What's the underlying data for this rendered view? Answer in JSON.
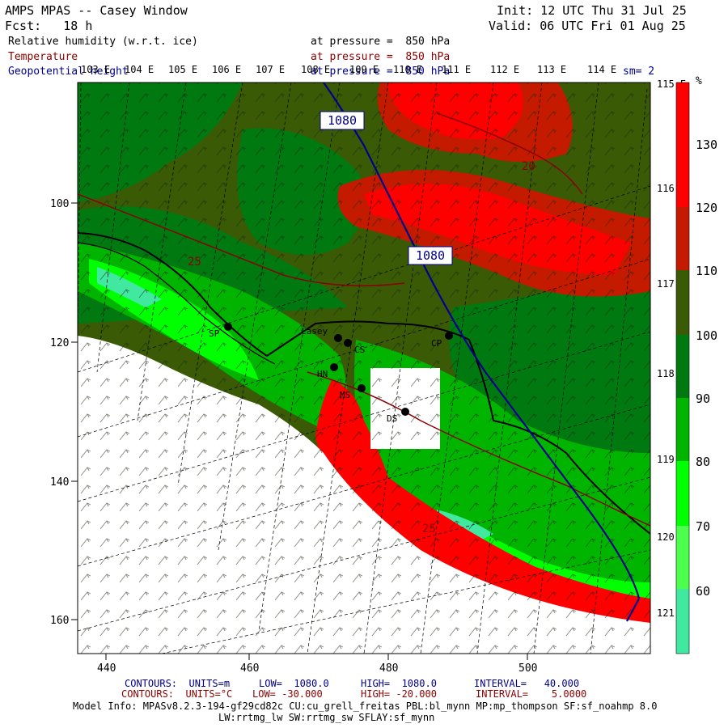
{
  "header": {
    "title": "AMPS MPAS -- Casey Window",
    "fcst": "Fcst:   18 h",
    "init": "Init: 12 UTC Thu 31 Jul 25",
    "valid": "Valid: 06 UTC Fri 01 Aug 25",
    "fields": [
      {
        "name": "Relative humidity (w.r.t. ice)",
        "level": "at pressure =  850 hPa",
        "color": "#000000"
      },
      {
        "name": "Temperature",
        "level": "at pressure =  850 hPa",
        "color": "#8b0000"
      },
      {
        "name": "Geopotential height",
        "level": "at pressure =  850 hPa",
        "color": "#00008b"
      }
    ],
    "smoothing": "sm= 2"
  },
  "map": {
    "top_lon_labels": [
      "103 E",
      "104 E",
      "105 E",
      "106 E",
      "107 E",
      "108 E",
      "109 E",
      "110 E",
      "111 E",
      "112 E",
      "113 E",
      "114 E"
    ],
    "right_lon_labels": [
      "115 E",
      "116 E",
      "117 E",
      "118 E",
      "119 E",
      "120 E",
      "121 E"
    ],
    "x_ticks": [
      "440",
      "460",
      "480",
      "500"
    ],
    "y_ticks": [
      "100",
      "120",
      "140",
      "160"
    ],
    "stations": [
      {
        "label": "SP"
      },
      {
        "label": "Casey"
      },
      {
        "label": "CS"
      },
      {
        "label": "CP"
      },
      {
        "label": "HN"
      },
      {
        "label": "MS"
      },
      {
        "label": "DS"
      }
    ],
    "contour_labels": {
      "height_top": "1080",
      "height_mid": "1080",
      "temp_top": "20",
      "temp_left": "25",
      "temp_bottom": "25"
    }
  },
  "colorbar": {
    "unit": "%",
    "labels": [
      "130",
      "120",
      "110",
      "100",
      "90",
      "80",
      "70",
      "60"
    ],
    "colors": [
      "#ff0000",
      "#c41a00",
      "#3a5a06",
      "#007a10",
      "#00b400",
      "#00ff00",
      "#4cff4c",
      "#40e8a0"
    ]
  },
  "footer": {
    "contours1_prefix": "CONTOURS:  UNITS=m",
    "contours1_low": "LOW=  1080.0",
    "contours1_high": "HIGH=  1080.0",
    "contours1_interval": "INTERVAL=   40.000",
    "contours2_prefix": "CONTOURS:  UNITS=°C",
    "contours2_low": "LOW= -30.000",
    "contours2_high": "HIGH= -20.000",
    "contours2_interval": "INTERVAL=    5.0000",
    "model_info": "Model Info: MPASv8.2.3-194-gf29cd82c CU:cu_grell_freitas PBL:bl_mynn MP:mp_thompson SF:sf_noahmp 8.0",
    "model_info2": "LW:rrtmg_lw SW:rrtmg_sw SFLAY:sf_mynn",
    "colors": {
      "contours1": "#00008b",
      "contours2": "#8b0000"
    }
  }
}
